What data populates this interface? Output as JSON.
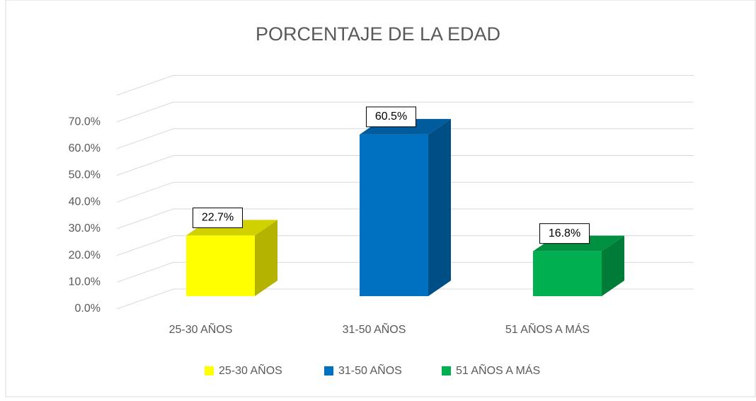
{
  "chart_data": {
    "type": "bar3d",
    "title": "PORCENTAJE DE LA EDAD",
    "categories": [
      "25-30 AÑOS",
      "31-50 AÑOS",
      "51 AÑOS A MÁS"
    ],
    "values": [
      22.7,
      60.5,
      16.8
    ],
    "value_labels": [
      "22.7%",
      "60.5%",
      "16.8%"
    ],
    "colors": [
      "#ffff00",
      "#0070c0",
      "#00b050"
    ],
    "ylim": [
      0,
      80
    ],
    "yticks": [
      {
        "value": 0,
        "label": "0.0%"
      },
      {
        "value": 10,
        "label": "10.0%"
      },
      {
        "value": 20,
        "label": "20.0%"
      },
      {
        "value": 30,
        "label": "30.0%"
      },
      {
        "value": 40,
        "label": "40.0%"
      },
      {
        "value": 50,
        "label": "50.0%"
      },
      {
        "value": 60,
        "label": "60.0%"
      },
      {
        "value": 70,
        "label": "70.0%"
      }
    ],
    "grid": true,
    "legend": "bottom"
  }
}
